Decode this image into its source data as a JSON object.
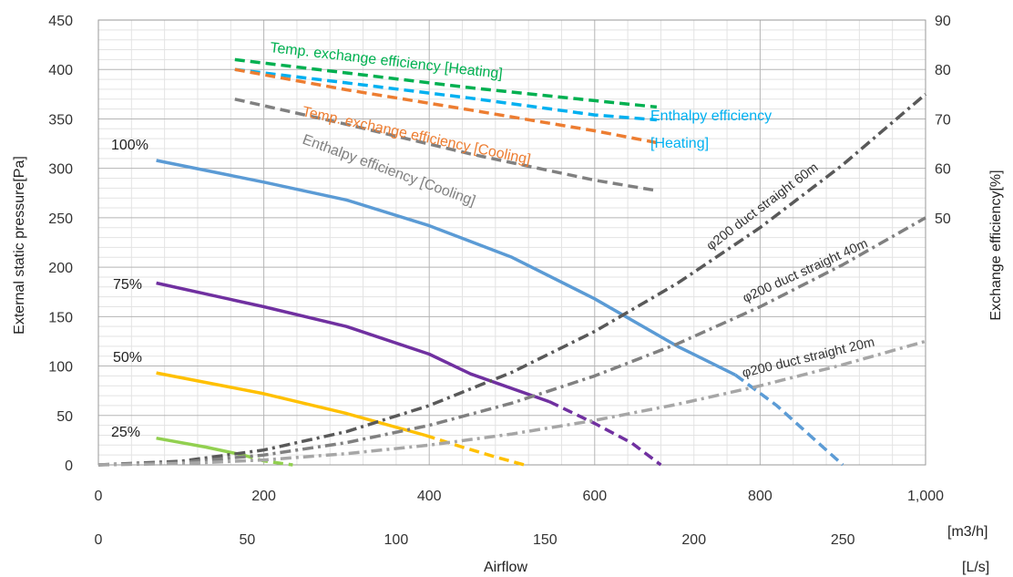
{
  "chart_data": {
    "type": "line",
    "title": "",
    "x_axis": {
      "label": "Airflow",
      "range": [
        0,
        1000
      ],
      "ticks": [
        "0",
        "200",
        "400",
        "600",
        "800",
        "1,000"
      ],
      "tick_values": [
        0,
        200,
        400,
        600,
        800,
        1000
      ],
      "unit": "[m3/h]"
    },
    "x2_axis": {
      "range": [
        0,
        277.78
      ],
      "ticks": [
        "0",
        "50",
        "100",
        "150",
        "200",
        "250"
      ],
      "tick_values": [
        0,
        50,
        100,
        150,
        200,
        250
      ],
      "unit": "[L/s]"
    },
    "y_axis": {
      "label": "External static pressure[Pa]",
      "range": [
        0,
        450
      ],
      "ticks": [
        "0",
        "50",
        "100",
        "150",
        "200",
        "250",
        "300",
        "350",
        "400",
        "450"
      ],
      "tick_values": [
        0,
        50,
        100,
        150,
        200,
        250,
        300,
        350,
        400,
        450
      ]
    },
    "y2_axis": {
      "label": "Exchange efficiency[%]",
      "range": [
        0,
        90
      ],
      "ticks": [
        "50",
        "60",
        "70",
        "80",
        "90"
      ],
      "tick_values": [
        50,
        60,
        70,
        80,
        90
      ]
    },
    "grid": true,
    "series": [
      {
        "name": "100%",
        "axis": "left",
        "color": "#5b9bd5",
        "style": "solid",
        "x": [
          70,
          200,
          300,
          400,
          500,
          600,
          700,
          770
        ],
        "y": [
          308,
          286,
          268,
          242,
          210,
          168,
          120,
          91
        ]
      },
      {
        "name": "100%",
        "axis": "left",
        "color": "#5b9bd5",
        "style": "dashed",
        "x": [
          770,
          820,
          860,
          900
        ],
        "y": [
          91,
          60,
          30,
          0
        ]
      },
      {
        "name": "75%",
        "axis": "left",
        "color": "#7030a0",
        "style": "solid",
        "x": [
          70,
          200,
          300,
          400,
          450,
          545
        ],
        "y": [
          184,
          160,
          140,
          112,
          92,
          64
        ]
      },
      {
        "name": "75%",
        "axis": "left",
        "color": "#7030a0",
        "style": "dashed",
        "x": [
          545,
          600,
          645,
          680
        ],
        "y": [
          64,
          42,
          22,
          0
        ]
      },
      {
        "name": "50%",
        "axis": "left",
        "color": "#ffc000",
        "style": "solid",
        "x": [
          70,
          200,
          300,
          395
        ],
        "y": [
          93,
          72,
          52,
          30
        ]
      },
      {
        "name": "50%",
        "axis": "left",
        "color": "#ffc000",
        "style": "dashed",
        "x": [
          395,
          440,
          480,
          515
        ],
        "y": [
          30,
          18,
          8,
          0
        ]
      },
      {
        "name": "25%",
        "axis": "left",
        "color": "#92d050",
        "style": "solid",
        "x": [
          70,
          130,
          175
        ],
        "y": [
          27,
          18,
          10
        ]
      },
      {
        "name": "25%",
        "axis": "left",
        "color": "#92d050",
        "style": "dashed",
        "x": [
          175,
          200,
          235
        ],
        "y": [
          10,
          4,
          0
        ]
      },
      {
        "name": "Temp. exchange efficiency [Heating]",
        "axis": "right",
        "color": "#00b050",
        "style": "dashed",
        "x": [
          165,
          300,
          450,
          600,
          675
        ],
        "y": [
          82,
          79.3,
          76.3,
          73.7,
          72.4
        ]
      },
      {
        "name": "Enthalpy efficiency [Heating]",
        "axis": "right",
        "color": "#00b0f0",
        "style": "dashed",
        "x": [
          165,
          300,
          450,
          600,
          675
        ],
        "y": [
          80,
          77.3,
          74.2,
          70.8,
          69.8
        ]
      },
      {
        "name": "Temp. exchange efficiency [Cooling]",
        "axis": "right",
        "color": "#ed7d31",
        "style": "dashed",
        "x": [
          165,
          300,
          450,
          600,
          675
        ],
        "y": [
          80,
          75.9,
          71.8,
          67.6,
          65.2
        ]
      },
      {
        "name": "Enthalpy efficiency [Cooling]",
        "axis": "right",
        "color": "#808080",
        "style": "dashed",
        "x": [
          165,
          300,
          450,
          600,
          675
        ],
        "y": [
          74,
          68.9,
          62.9,
          57.6,
          55.5
        ]
      },
      {
        "name": "φ200 duct straight 60m",
        "axis": "left",
        "color": "#595959",
        "style": "dashdot",
        "x": [
          0,
          100,
          200,
          300,
          400,
          500,
          600,
          700,
          800,
          900,
          1000
        ],
        "y": [
          0,
          3.7,
          15,
          33.7,
          60,
          93.7,
          135,
          183.7,
          240,
          303.7,
          375
        ]
      },
      {
        "name": "φ200 duct straight 40m",
        "axis": "left",
        "color": "#808080",
        "style": "dashdot",
        "x": [
          0,
          100,
          200,
          300,
          400,
          500,
          600,
          700,
          800,
          900,
          1000
        ],
        "y": [
          0,
          2.5,
          10,
          22.5,
          40,
          62.5,
          90,
          122.5,
          160,
          202.5,
          250
        ]
      },
      {
        "name": "φ200 duct straight 20m",
        "axis": "left",
        "color": "#a6a6a6",
        "style": "dashdot",
        "x": [
          0,
          100,
          200,
          300,
          400,
          500,
          600,
          700,
          800,
          900,
          1000
        ],
        "y": [
          0,
          1.3,
          5,
          11.3,
          20,
          31.3,
          45,
          61.3,
          80,
          101.3,
          125
        ]
      }
    ],
    "annotations": {
      "label_100": "100%",
      "label_75": "75%",
      "label_50": "50%",
      "label_25": "25%",
      "temp_heating": "Temp. exchange efficiency [Heating]",
      "enthalpy_heating_1": "Enthalpy efficiency",
      "enthalpy_heating_2": "[Heating]",
      "temp_cooling": "Temp. exchange efficiency [Cooling]",
      "enthalpy_cooling": "Enthalpy efficiency [Cooling]",
      "duct_60": "φ200 duct straight 60m",
      "duct_40": "φ200 duct straight 40m",
      "duct_20": "φ200 duct straight 20m"
    }
  }
}
